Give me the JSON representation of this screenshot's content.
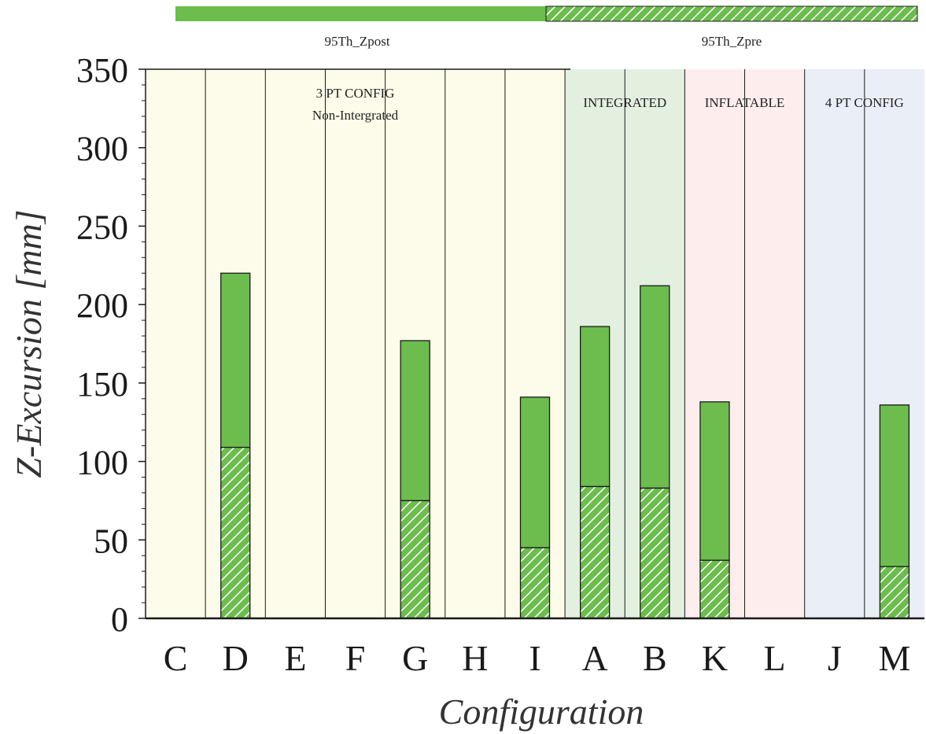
{
  "chart_data": {
    "type": "bar",
    "stacked": true,
    "xlabel": "Configuration",
    "ylabel": "Z-Excursion [mm]",
    "ylim": [
      0,
      350
    ],
    "yticks": [
      0,
      50,
      100,
      150,
      200,
      250,
      300,
      350
    ],
    "categories": [
      "C",
      "D",
      "E",
      "F",
      "G",
      "H",
      "I",
      "A",
      "B",
      "K",
      "L",
      "J",
      "M"
    ],
    "series": [
      {
        "name": "95Th_Zpre",
        "pattern": "hatched",
        "values": [
          0,
          109,
          0,
          0,
          75,
          0,
          45,
          84,
          83,
          37,
          0,
          0,
          33
        ]
      },
      {
        "name": "95Th_Zpost",
        "pattern": "solid",
        "values": [
          0,
          111,
          0,
          0,
          102,
          0,
          96,
          102,
          129,
          101,
          0,
          0,
          103
        ]
      }
    ],
    "totals": [
      0,
      220,
      0,
      0,
      177,
      0,
      141,
      186,
      212,
      138,
      0,
      0,
      136
    ],
    "groups": [
      {
        "label_lines": [
          "3 PT CONFIG",
          "Non-Intergrated"
        ],
        "from": 0,
        "to": 6,
        "color": "#fdfbe9"
      },
      {
        "label_lines": [
          "INTEGRATED"
        ],
        "from": 7,
        "to": 8,
        "color": "#e3efdf"
      },
      {
        "label_lines": [
          "INFLATABLE"
        ],
        "from": 9,
        "to": 10,
        "color": "#fdeeed"
      },
      {
        "label_lines": [
          "4 PT CONFIG"
        ],
        "from": 11,
        "to": 12,
        "color": "#e9eef7"
      }
    ],
    "legend_placement": "top",
    "grid": false,
    "colors": {
      "bar_fill": "#6cbd4e",
      "hatch_line": "#ffffff",
      "outline": "#1a1a1a"
    }
  }
}
